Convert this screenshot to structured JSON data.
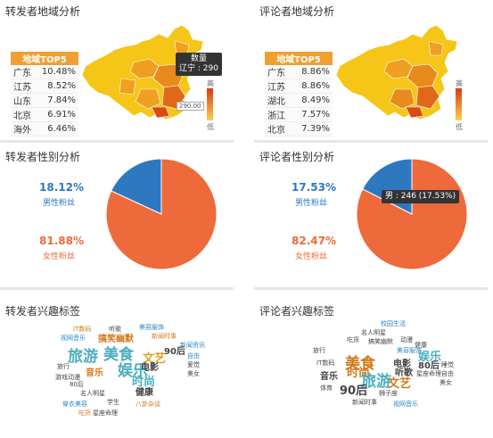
{
  "panels": {
    "fwd_region": {
      "title": "转发者地域分析",
      "table_header": "地域TOP5",
      "rows": [
        {
          "region": "广东",
          "value": "10.48%"
        },
        {
          "region": "江苏",
          "value": "8.52%"
        },
        {
          "region": "山东",
          "value": "7.84%"
        },
        {
          "region": "北京",
          "value": "6.91%"
        },
        {
          "region": "海外",
          "value": "6.46%"
        }
      ],
      "tooltip_title": "数量",
      "tooltip_value": "辽宁 : 290",
      "scale_value": "290.00",
      "legend_high": "高",
      "legend_low": "低"
    },
    "cmt_region": {
      "title": "评论者地域分析",
      "table_header": "地域TOP5",
      "rows": [
        {
          "region": "广东",
          "value": "8.86%"
        },
        {
          "region": "江苏",
          "value": "8.86%"
        },
        {
          "region": "湖北",
          "value": "8.49%"
        },
        {
          "region": "浙江",
          "value": "7.57%"
        },
        {
          "region": "北京",
          "value": "7.39%"
        }
      ],
      "legend_high": "高",
      "legend_low": "低"
    },
    "fwd_gender": {
      "title": "转发者性别分析",
      "male_pct": "18.12%",
      "male_label": "男性粉丝",
      "female_pct": "81.88%",
      "female_label": "女性粉丝"
    },
    "cmt_gender": {
      "title": "评论者性别分析",
      "male_pct": "17.53%",
      "male_label": "男性粉丝",
      "female_pct": "82.47%",
      "female_label": "女性粉丝",
      "tooltip": "男 : 246 (17.53%)"
    },
    "fwd_interest": {
      "title": "转发者兴趣标签"
    },
    "cmt_interest": {
      "title": "评论者兴趣标签"
    }
  },
  "colors": {
    "male": "#2e78c0",
    "female": "#ee6a3a",
    "table_header": "#f0a030",
    "map_light": "#f5c518",
    "map_mid": "#f0a020",
    "map_dark": "#e06818"
  },
  "chart_data": [
    {
      "type": "pie",
      "title": "转发者性别分析",
      "categories": [
        "男性粉丝",
        "女性粉丝"
      ],
      "values": [
        18.12,
        81.88
      ]
    },
    {
      "type": "pie",
      "title": "评论者性别分析",
      "categories": [
        "男性粉丝",
        "女性粉丝"
      ],
      "values": [
        17.53,
        82.47
      ]
    },
    {
      "type": "table",
      "title": "转发者地域分析",
      "categories": [
        "广东",
        "江苏",
        "山东",
        "北京",
        "海外"
      ],
      "values": [
        10.48,
        8.52,
        7.84,
        6.91,
        6.46
      ]
    },
    {
      "type": "table",
      "title": "评论者地域分析",
      "categories": [
        "广东",
        "江苏",
        "湖北",
        "浙江",
        "北京"
      ],
      "values": [
        8.86,
        8.86,
        8.49,
        7.57,
        7.39
      ]
    }
  ],
  "word_clouds": {
    "fwd": [
      {
        "text": "IT数码",
        "color": "#d0781a",
        "weight": 1
      },
      {
        "text": "听歌",
        "color": "#444444",
        "weight": 1
      },
      {
        "text": "美容服饰",
        "color": "#2a84c6",
        "weight": 1
      },
      {
        "text": "视网音乐",
        "color": "#2a84c6",
        "weight": 1
      },
      {
        "text": "搞笑幽默",
        "color": "#d0781a",
        "weight": 2
      },
      {
        "text": "新闻时事",
        "color": "#d0781a",
        "weight": 1
      },
      {
        "text": "新闻资讯",
        "color": "#2a84c6",
        "weight": 1
      },
      {
        "text": "旅游",
        "color": "#4aaec0",
        "weight": 4
      },
      {
        "text": "美食",
        "color": "#4aaec0",
        "weight": 4
      },
      {
        "text": "文艺",
        "color": "#e0a020",
        "weight": 3
      },
      {
        "text": "90后",
        "color": "#444444",
        "weight": 2
      },
      {
        "text": "自由",
        "color": "#2a84c6",
        "weight": 1
      },
      {
        "text": "旅行",
        "color": "#444444",
        "weight": 1
      },
      {
        "text": "游戏动漫",
        "color": "#444444",
        "weight": 1
      },
      {
        "text": "娱乐",
        "color": "#4aaec0",
        "weight": 4
      },
      {
        "text": "电影",
        "color": "#444444",
        "weight": 2
      },
      {
        "text": "爱觉",
        "color": "#444444",
        "weight": 1
      },
      {
        "text": "音乐",
        "color": "#d0781a",
        "weight": 2
      },
      {
        "text": "时尚",
        "color": "#4aaec0",
        "weight": 3
      },
      {
        "text": "美女",
        "color": "#444444",
        "weight": 1
      },
      {
        "text": "80后",
        "color": "#444444",
        "weight": 1
      },
      {
        "text": "名人明星",
        "color": "#444444",
        "weight": 1
      },
      {
        "text": "健康",
        "color": "#444444",
        "weight": 2
      },
      {
        "text": "学生",
        "color": "#444444",
        "weight": 1
      },
      {
        "text": "穿衣美容",
        "color": "#2a84c6",
        "weight": 1
      },
      {
        "text": "吃货",
        "color": "#d0781a",
        "weight": 1
      },
      {
        "text": "星座命理",
        "color": "#444444",
        "weight": 1
      },
      {
        "text": "八卦杂谈",
        "color": "#d0781a",
        "weight": 1
      }
    ],
    "cmt": [
      {
        "text": "校园生活",
        "color": "#2a84c6",
        "weight": 1
      },
      {
        "text": "名人明星",
        "color": "#444444",
        "weight": 1
      },
      {
        "text": "吃货",
        "color": "#444444",
        "weight": 1
      },
      {
        "text": "搞笑幽默",
        "color": "#444444",
        "weight": 1
      },
      {
        "text": "动漫",
        "color": "#444444",
        "weight": 1
      },
      {
        "text": "健康",
        "color": "#444444",
        "weight": 1
      },
      {
        "text": "旅行",
        "color": "#444444",
        "weight": 1
      },
      {
        "text": "美容服饰",
        "color": "#2a84c6",
        "weight": 1
      },
      {
        "text": "娱乐",
        "color": "#4aaec0",
        "weight": 3
      },
      {
        "text": "IT数码",
        "color": "#444444",
        "weight": 1
      },
      {
        "text": "美食",
        "color": "#d0781a",
        "weight": 4
      },
      {
        "text": "电影",
        "color": "#444444",
        "weight": 2
      },
      {
        "text": "80后",
        "color": "#444444",
        "weight": 2
      },
      {
        "text": "睡觉",
        "color": "#444444",
        "weight": 1
      },
      {
        "text": "时尚",
        "color": "#d0781a",
        "weight": 3
      },
      {
        "text": "听歌",
        "color": "#444444",
        "weight": 2
      },
      {
        "text": "星座命理",
        "color": "#444444",
        "weight": 1
      },
      {
        "text": "自由",
        "color": "#444444",
        "weight": 1
      },
      {
        "text": "音乐",
        "color": "#444444",
        "weight": 2
      },
      {
        "text": "旅游",
        "color": "#4aaec0",
        "weight": 4
      },
      {
        "text": "文艺",
        "color": "#d0781a",
        "weight": 3
      },
      {
        "text": "美女",
        "color": "#444444",
        "weight": 1
      },
      {
        "text": "体育",
        "color": "#444444",
        "weight": 1
      },
      {
        "text": "90后",
        "color": "#444444",
        "weight": 3
      },
      {
        "text": "狮子座",
        "color": "#444444",
        "weight": 1
      },
      {
        "text": "新闻时事",
        "color": "#444444",
        "weight": 1
      },
      {
        "text": "视网音乐",
        "color": "#2a84c6",
        "weight": 1
      }
    ]
  }
}
